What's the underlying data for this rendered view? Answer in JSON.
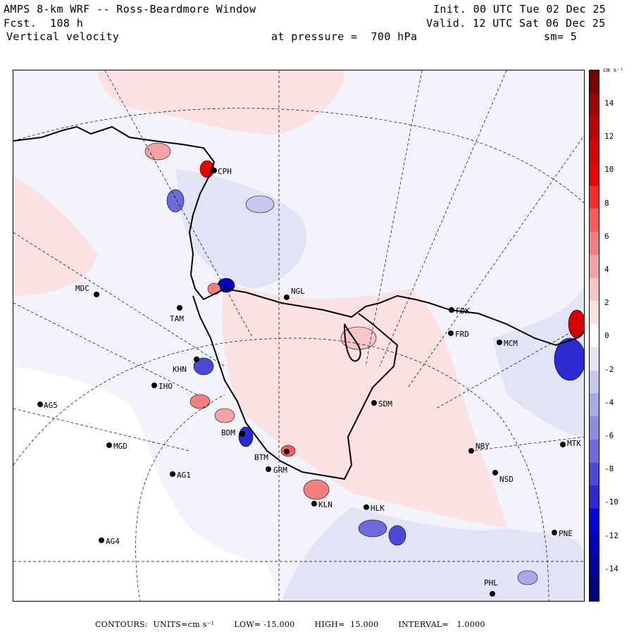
{
  "header": {
    "title": "AMPS 8-km WRF -- Ross-Beardmore Window",
    "forecast": "Fcst.  108 h",
    "field": "Vertical velocity",
    "init": "Init. 00 UTC Tue 02 Dec 25",
    "valid": "Valid. 12 UTC Sat 06 Dec 25",
    "pressure": "at pressure =  700 hPa",
    "smoothing": "sm= 5"
  },
  "colorbar": {
    "units": "cm s⁻¹",
    "labels": [
      "14",
      "12",
      "10",
      "8",
      "6",
      "4",
      "2",
      "0",
      "-2",
      "-4",
      "-6",
      "-8",
      "-10",
      "-12",
      "-14"
    ],
    "colors_top_to_bottom": [
      "#7a0000",
      "#a00000",
      "#c00000",
      "#d80000",
      "#ee0000",
      "#ff2a2a",
      "#ff5c5c",
      "#f47f7f",
      "#f4a3a3",
      "#f8c6c6",
      "#fbe1e1",
      "#ffffff",
      "#e3e3f6",
      "#c9c9f0",
      "#a9a9ea",
      "#8c8ce4",
      "#6b6bdb",
      "#4a4ad6",
      "#2a2ad0",
      "#0000e0",
      "#0000c0",
      "#0000a0",
      "#000080"
    ]
  },
  "stations": [
    {
      "code": "CPH"
    },
    {
      "code": "MDC"
    },
    {
      "code": "NGL"
    },
    {
      "code": "FDK"
    },
    {
      "code": "FRD"
    },
    {
      "code": "MCM"
    },
    {
      "code": "TAM"
    },
    {
      "code": "KHN"
    },
    {
      "code": "IHO"
    },
    {
      "code": "AG5"
    },
    {
      "code": "SDM"
    },
    {
      "code": "MGD"
    },
    {
      "code": "BDM"
    },
    {
      "code": "NBY"
    },
    {
      "code": "MTK"
    },
    {
      "code": "BTM"
    },
    {
      "code": "GRM"
    },
    {
      "code": "AG1"
    },
    {
      "code": "NSD"
    },
    {
      "code": "KLN"
    },
    {
      "code": "HLK"
    },
    {
      "code": "PNE"
    },
    {
      "code": "AG4"
    },
    {
      "code": "PHL"
    }
  ],
  "footer": {
    "contours": "CONTOURS:  UNITS=cm s⁻¹",
    "low": "LOW= -15.000",
    "high": "HIGH=  15.000",
    "interval": "INTERVAL=   1.0000"
  },
  "colors": {
    "positive_light": "#fbe1e1",
    "negative_light": "#e3e3f6",
    "coastline": "#000000"
  }
}
